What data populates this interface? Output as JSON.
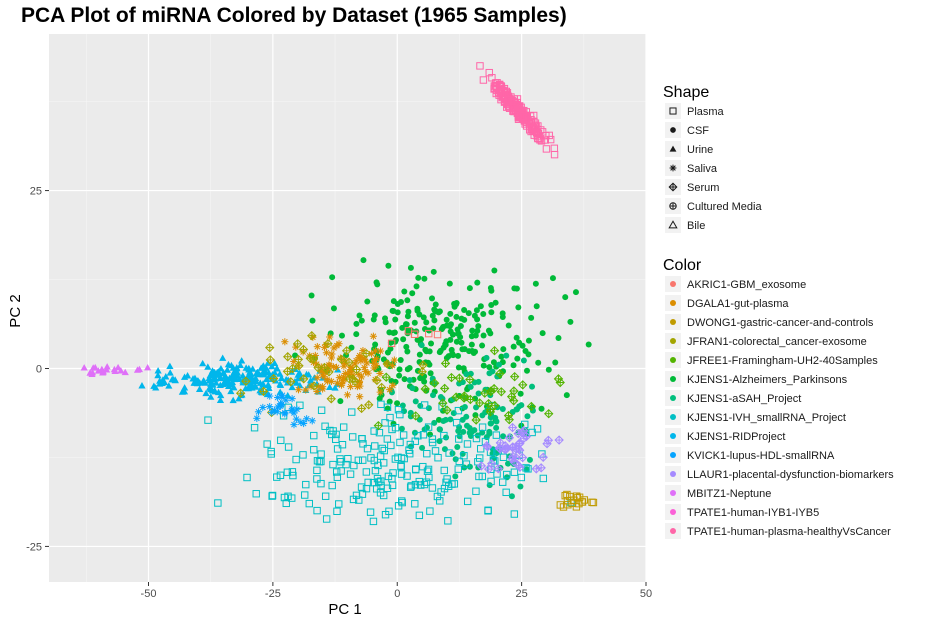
{
  "chart_data": {
    "type": "scatter",
    "title": "PCA Plot of miRNA Colored by Dataset (1965 Samples)",
    "xlabel": "PC 1",
    "ylabel": "PC 2",
    "xlim": [
      -70,
      50
    ],
    "ylim": [
      -30,
      47
    ],
    "x_ticks": [
      -50,
      -25,
      0,
      25,
      50
    ],
    "y_ticks": [
      -25,
      0,
      25
    ],
    "grid": true,
    "legend_position": "right",
    "shape_legend": {
      "title": "Shape",
      "items": [
        {
          "label": "Plasma",
          "icon": "open-square"
        },
        {
          "label": "CSF",
          "icon": "filled-circle"
        },
        {
          "label": "Urine",
          "icon": "filled-triangle"
        },
        {
          "label": "Saliva",
          "icon": "asterisk"
        },
        {
          "label": "Serum",
          "icon": "diamond-plus"
        },
        {
          "label": "Cultured Media",
          "icon": "circle-plus"
        },
        {
          "label": "Bile",
          "icon": "open-triangle"
        }
      ]
    },
    "color_legend": {
      "title": "Color",
      "items": [
        {
          "label": "AKRIC1-GBM_exosome",
          "color": "#F8766D"
        },
        {
          "label": "DGALA1-gut-plasma",
          "color": "#DB8E00"
        },
        {
          "label": "DWONG1-gastric-cancer-and-controls",
          "color": "#C09B00"
        },
        {
          "label": "JFRAN1-colorectal_cancer-exosome",
          "color": "#A3A500"
        },
        {
          "label": "JFREE1-Framingham-UH2-40Samples",
          "color": "#53B400"
        },
        {
          "label": "KJENS1-Alzheimers_Parkinsons",
          "color": "#00BA38"
        },
        {
          "label": "KJENS1-aSAH_Project",
          "color": "#00BF7D"
        },
        {
          "label": "KJENS1-IVH_smallRNA_Project",
          "color": "#00BFC4"
        },
        {
          "label": "KJENS1-RIDProject",
          "color": "#00B6EB"
        },
        {
          "label": "KVICK1-lupus-HDL-smallRNA",
          "color": "#06A4FF"
        },
        {
          "label": "LLAUR1-placental-dysfunction-biomarkers",
          "color": "#A58AFF"
        },
        {
          "label": "MBITZ1-Neptune",
          "color": "#DF70F8"
        },
        {
          "label": "TPATE1-human-IYB1-IYB5",
          "color": "#FB61D7"
        },
        {
          "label": "TPATE1-human-plasma-healthyVsCancer",
          "color": "#FF66A8"
        }
      ]
    },
    "clusters": [
      {
        "dataset": "KJENS1-Alzheimers_Parkinsons",
        "shape": "filled-circle",
        "color": "#00BA38",
        "n": 260,
        "x_range": [
          -25,
          42
        ],
        "y_range": [
          -10,
          18
        ]
      },
      {
        "dataset": "KJENS1-aSAH_Project",
        "shape": "filled-circle",
        "color": "#00BF7D",
        "n": 120,
        "x_range": [
          -5,
          35
        ],
        "y_range": [
          -20,
          5
        ]
      },
      {
        "dataset": "KJENS1-IVH_smallRNA_Project",
        "shape": "open-square",
        "color": "#00BFC4",
        "n": 220,
        "x_range": [
          -45,
          42
        ],
        "y_range": [
          -26,
          -2
        ]
      },
      {
        "dataset": "KJENS1-RIDProject",
        "shape": "filled-triangle",
        "color": "#00B6EB",
        "n": 220,
        "x_range": [
          -55,
          -8
        ],
        "y_range": [
          -5,
          2
        ]
      },
      {
        "dataset": "DGALA1-gut-plasma",
        "shape": "asterisk",
        "color": "#DB8E00",
        "n": 100,
        "x_range": [
          -25,
          5
        ],
        "y_range": [
          -6,
          6
        ]
      },
      {
        "dataset": "DWONG1-gastric-cancer-and-controls",
        "shape": "open-square",
        "color": "#C09B00",
        "n": 20,
        "x_range": [
          30,
          42
        ],
        "y_range": [
          -20,
          -17
        ]
      },
      {
        "dataset": "JFRAN1-colorectal_cancer-exosome",
        "shape": "diamond-plus",
        "color": "#A3A500",
        "n": 40,
        "x_range": [
          -40,
          10
        ],
        "y_range": [
          -8,
          6
        ]
      },
      {
        "dataset": "JFREE1-Framingham-UH2-40Samples",
        "shape": "diamond-plus",
        "color": "#53B400",
        "n": 40,
        "x_range": [
          -10,
          45
        ],
        "y_range": [
          -10,
          4
        ]
      },
      {
        "dataset": "KVICK1-lupus-HDL-smallRNA",
        "shape": "asterisk",
        "color": "#06A4FF",
        "n": 30,
        "x_range": [
          -30,
          -15
        ],
        "y_range": [
          -9,
          -3
        ]
      },
      {
        "dataset": "LLAUR1-placental-dysfunction-biomarkers",
        "shape": "diamond-plus",
        "color": "#A58AFF",
        "n": 40,
        "x_range": [
          12,
          35
        ],
        "y_range": [
          -16,
          -7
        ]
      },
      {
        "dataset": "MBITZ1-Neptune",
        "shape": "filled-triangle",
        "color": "#DF70F8",
        "n": 20,
        "x_range": [
          -66,
          -48
        ],
        "y_range": [
          -1,
          1
        ]
      },
      {
        "dataset": "TPATE1-human-plasma-healthyVsCancer",
        "shape": "open-square",
        "color": "#FF66A8",
        "n": 180,
        "x_range": [
          14,
          34
        ],
        "y_range": [
          29,
          44
        ]
      },
      {
        "dataset": "AKRIC1-GBM_exosome",
        "shape": "open-square",
        "color": "#F8766D",
        "n": 6,
        "x_range": [
          -5,
          10
        ],
        "y_range": [
          3,
          7
        ]
      }
    ]
  }
}
